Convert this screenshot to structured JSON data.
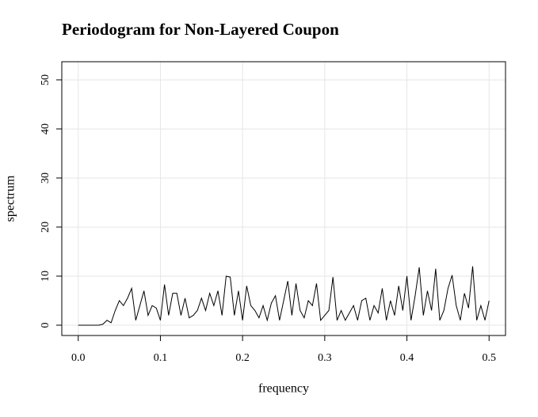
{
  "chart_data": {
    "type": "line",
    "title": "Periodogram for Non-Layered Coupon",
    "x_label": "frequency",
    "y_label": "spectrum",
    "x": [
      0,
      0.005,
      0.01,
      0.015,
      0.02,
      0.025,
      0.03,
      0.035,
      0.04,
      0.045,
      0.05,
      0.055,
      0.06,
      0.065,
      0.07,
      0.075,
      0.08,
      0.085,
      0.09,
      0.095,
      0.1,
      0.105,
      0.11,
      0.115,
      0.12,
      0.125,
      0.13,
      0.135,
      0.14,
      0.145,
      0.15,
      0.155,
      0.16,
      0.165,
      0.17,
      0.175,
      0.18,
      0.185,
      0.19,
      0.195,
      0.2,
      0.205,
      0.21,
      0.215,
      0.22,
      0.225,
      0.23,
      0.235,
      0.24,
      0.245,
      0.25,
      0.255,
      0.26,
      0.265,
      0.27,
      0.275,
      0.28,
      0.285,
      0.29,
      0.295,
      0.3,
      0.305,
      0.31,
      0.315,
      0.32,
      0.325,
      0.33,
      0.335,
      0.34,
      0.345,
      0.35,
      0.355,
      0.36,
      0.365,
      0.37,
      0.375,
      0.38,
      0.385,
      0.39,
      0.395,
      0.4,
      0.405,
      0.41,
      0.415,
      0.42,
      0.425,
      0.43,
      0.435,
      0.44,
      0.445,
      0.45,
      0.455,
      0.46,
      0.465,
      0.47,
      0.475,
      0.48,
      0.485,
      0.49,
      0.495,
      0.5
    ],
    "values": [
      0,
      0,
      0,
      0,
      0,
      0,
      0.2,
      1,
      0.5,
      3,
      5,
      4,
      5.5,
      7.5,
      1,
      4,
      7,
      2,
      4,
      3.5,
      1,
      8.3,
      2,
      6.5,
      6.5,
      2,
      5.5,
      1.5,
      2,
      3,
      5.5,
      3,
      6.5,
      4,
      7,
      2,
      10,
      9.8,
      2,
      7,
      1,
      8,
      4,
      3,
      1.5,
      4,
      1,
      4.5,
      6,
      1,
      5,
      9,
      2,
      8.5,
      3,
      1.5,
      5,
      4,
      8.5,
      1,
      2,
      3,
      9.8,
      1,
      3,
      1,
      2.5,
      4,
      1,
      5,
      5.5,
      1,
      4,
      2.5,
      7.5,
      1,
      5,
      2,
      8,
      3,
      10,
      1,
      6,
      11.8,
      2,
      7,
      3,
      11.5,
      1,
      3,
      7.5,
      10.2,
      4,
      1,
      6.5,
      3.5,
      12,
      1,
      4,
      1,
      5
    ],
    "color": "#000000",
    "xlim": [
      -0.02,
      0.52
    ],
    "ylim": [
      -2.1,
      53.7
    ],
    "xticks": [
      {
        "value": 0,
        "label": "0.0"
      },
      0.1,
      0.2,
      0.3,
      0.4,
      0.5
    ],
    "yticks": [
      0,
      10,
      20,
      30,
      40,
      50
    ],
    "grid": true
  }
}
